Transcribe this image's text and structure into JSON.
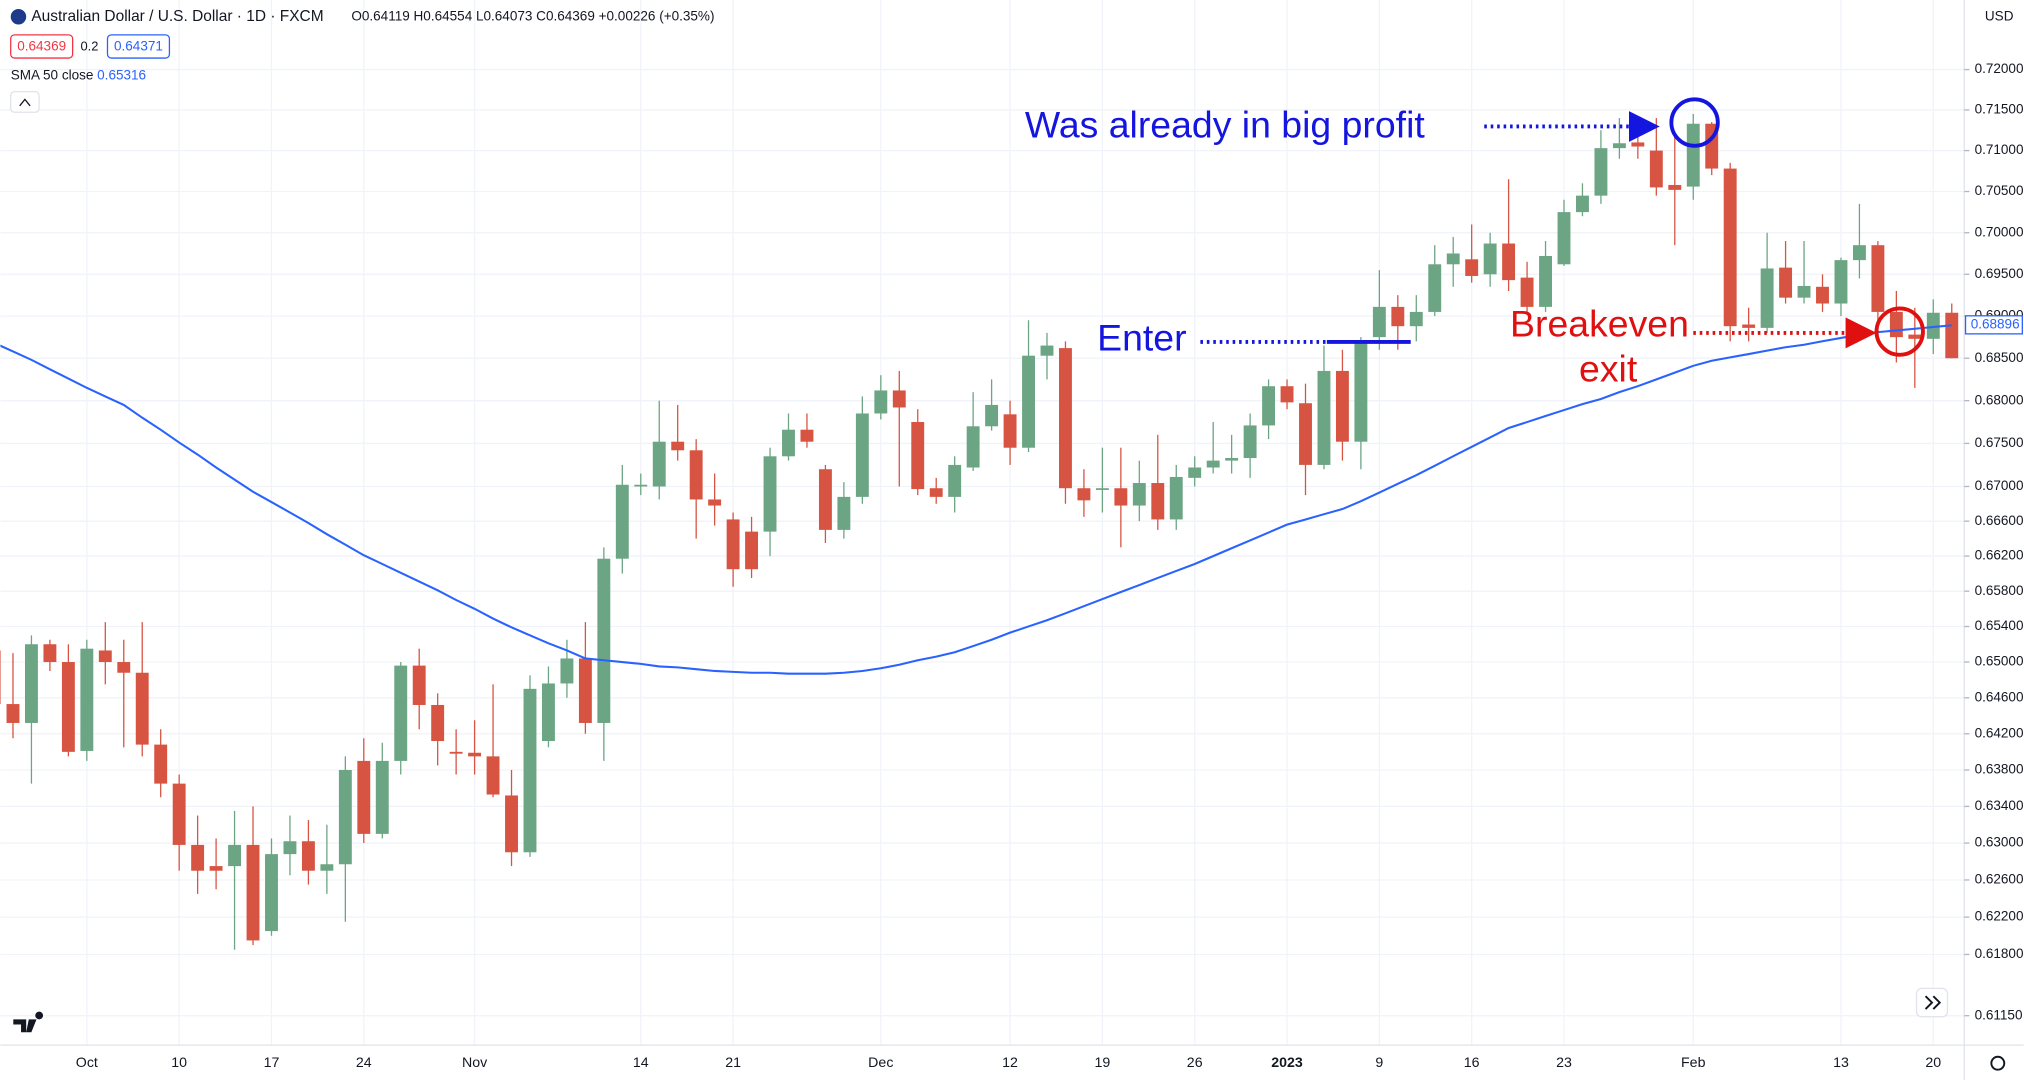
{
  "header": {
    "symbol": "Australian Dollar / U.S. Dollar · 1D · FXCM",
    "ohlc_text": "O0.64119 H0.64554 L0.64073 C0.64369 +0.00226 (+0.35%)",
    "sell": "0.64369",
    "spread": "0.2",
    "buy": "0.64371",
    "currency": "USD"
  },
  "chart_data": {
    "type": "candlestick",
    "categories": [
      null,
      null,
      null,
      null,
      null,
      "Oct",
      null,
      null,
      null,
      null,
      "10",
      null,
      null,
      null,
      null,
      "17",
      null,
      null,
      null,
      null,
      "24",
      null,
      null,
      null,
      null,
      null,
      "Nov",
      null,
      null,
      null,
      null,
      null,
      null,
      null,
      null,
      "14",
      null,
      null,
      null,
      null,
      "21",
      null,
      null,
      null,
      null,
      null,
      null,
      null,
      "Dec",
      null,
      null,
      null,
      null,
      null,
      null,
      "12",
      null,
      null,
      null,
      null,
      "19",
      null,
      null,
      null,
      null,
      "26",
      null,
      null,
      null,
      null,
      "2023",
      null,
      null,
      null,
      null,
      "9",
      null,
      null,
      null,
      null,
      "16",
      null,
      null,
      null,
      null,
      "23",
      null,
      null,
      null,
      null,
      null,
      null,
      "Feb",
      null,
      null,
      null,
      null,
      null,
      null,
      null,
      "13",
      null,
      null,
      null,
      null,
      "20",
      null
    ],
    "ohlc": {
      "up_color": "#6ba583",
      "down_color": "#d75442",
      "open": [
        0.6513,
        0.6453,
        0.6432,
        0.652,
        0.65,
        0.6401,
        0.6513,
        0.65,
        0.6488,
        0.6408,
        0.6365,
        0.6298,
        0.6275,
        0.6275,
        0.6298,
        0.6205,
        0.6288,
        0.6302,
        0.627,
        0.6277,
        0.639,
        0.631,
        0.639,
        0.6496,
        0.6452,
        0.64,
        0.6399,
        0.6395,
        0.6352,
        0.629,
        0.6412,
        0.6476,
        0.6504,
        0.6432,
        0.6617,
        0.67,
        0.67,
        0.6752,
        0.6742,
        0.6685,
        0.6662,
        0.6648,
        0.6648,
        0.6735,
        0.6766,
        0.672,
        0.665,
        0.6688,
        0.6785,
        0.6812,
        0.6775,
        0.6698,
        0.6688,
        0.6722,
        0.677,
        0.6784,
        0.6745,
        0.6853,
        0.6862,
        0.6698,
        0.6696,
        0.6698,
        0.6678,
        0.6704,
        0.6662,
        0.671,
        0.6722,
        0.673,
        0.6733,
        0.6771,
        0.6817,
        0.6797,
        0.6725,
        0.6835,
        0.6752,
        0.6875,
        0.6911,
        0.6888,
        0.6905,
        0.6962,
        0.6968,
        0.695,
        0.6987,
        0.6946,
        0.6911,
        0.6962,
        0.7025,
        0.7045,
        0.7103,
        0.711,
        0.71,
        0.7058,
        0.7056,
        0.7133,
        0.7078,
        0.689,
        0.6886,
        0.6958,
        0.6922,
        0.6935,
        0.6915,
        0.6967,
        0.6985,
        0.6905,
        0.6878,
        0.6873,
        0.6904
      ],
      "high": [
        0.653,
        0.651,
        0.653,
        0.6525,
        0.652,
        0.6525,
        0.6545,
        0.6525,
        0.6545,
        0.6425,
        0.6375,
        0.633,
        0.6305,
        0.6335,
        0.634,
        0.6305,
        0.633,
        0.6325,
        0.632,
        0.6395,
        0.6415,
        0.641,
        0.65,
        0.6515,
        0.6465,
        0.6425,
        0.6435,
        0.6475,
        0.638,
        0.6485,
        0.6495,
        0.6525,
        0.6545,
        0.663,
        0.6725,
        0.6715,
        0.68,
        0.6795,
        0.6755,
        0.6715,
        0.667,
        0.6665,
        0.6745,
        0.6785,
        0.6785,
        0.6725,
        0.6705,
        0.6805,
        0.683,
        0.6835,
        0.679,
        0.671,
        0.6735,
        0.681,
        0.6825,
        0.68,
        0.6895,
        0.688,
        0.687,
        0.672,
        0.6745,
        0.6745,
        0.673,
        0.676,
        0.6725,
        0.6735,
        0.6775,
        0.676,
        0.6785,
        0.6825,
        0.6825,
        0.682,
        0.6865,
        0.686,
        0.6875,
        0.6955,
        0.6925,
        0.6925,
        0.6985,
        0.6995,
        0.701,
        0.7,
        0.7065,
        0.6965,
        0.699,
        0.704,
        0.706,
        0.7125,
        0.714,
        0.713,
        0.714,
        0.712,
        0.7145,
        0.7135,
        0.7085,
        0.691,
        0.7,
        0.699,
        0.699,
        0.695,
        0.697,
        0.7035,
        0.699,
        0.693,
        0.691,
        0.692,
        0.6915
      ],
      "low": [
        0.644,
        0.6415,
        0.6365,
        0.649,
        0.6395,
        0.639,
        0.6475,
        0.6405,
        0.6395,
        0.635,
        0.627,
        0.6245,
        0.625,
        0.6185,
        0.619,
        0.62,
        0.6265,
        0.6255,
        0.6245,
        0.6215,
        0.63,
        0.6305,
        0.6375,
        0.6425,
        0.6385,
        0.6375,
        0.6375,
        0.635,
        0.6275,
        0.6285,
        0.6405,
        0.646,
        0.642,
        0.639,
        0.66,
        0.669,
        0.6685,
        0.673,
        0.664,
        0.6655,
        0.6585,
        0.6595,
        0.662,
        0.673,
        0.6745,
        0.6635,
        0.664,
        0.668,
        0.6778,
        0.67,
        0.669,
        0.668,
        0.667,
        0.6718,
        0.6765,
        0.6725,
        0.674,
        0.6825,
        0.668,
        0.6665,
        0.667,
        0.663,
        0.666,
        0.665,
        0.665,
        0.67,
        0.6715,
        0.6715,
        0.671,
        0.6755,
        0.679,
        0.669,
        0.672,
        0.673,
        0.672,
        0.686,
        0.686,
        0.687,
        0.69,
        0.6935,
        0.694,
        0.6935,
        0.693,
        0.6905,
        0.6905,
        0.696,
        0.702,
        0.7035,
        0.709,
        0.709,
        0.7045,
        0.6985,
        0.704,
        0.707,
        0.687,
        0.687,
        0.688,
        0.6915,
        0.6915,
        0.6905,
        0.69,
        0.6945,
        0.6875,
        0.6845,
        0.6815,
        0.6855,
        0.685
      ],
      "close": [
        0.6453,
        0.6432,
        0.652,
        0.65,
        0.64,
        0.6515,
        0.65,
        0.6488,
        0.6408,
        0.6365,
        0.6298,
        0.627,
        0.627,
        0.6298,
        0.6195,
        0.6288,
        0.6302,
        0.627,
        0.6277,
        0.638,
        0.631,
        0.639,
        0.6496,
        0.6452,
        0.6412,
        0.6398,
        0.6395,
        0.6353,
        0.629,
        0.647,
        0.6476,
        0.6504,
        0.6432,
        0.6617,
        0.6702,
        0.6702,
        0.6752,
        0.6742,
        0.6685,
        0.6678,
        0.6605,
        0.6605,
        0.6735,
        0.6766,
        0.6752,
        0.665,
        0.6688,
        0.6785,
        0.6812,
        0.6792,
        0.6697,
        0.6688,
        0.6725,
        0.677,
        0.6795,
        0.6745,
        0.6853,
        0.6865,
        0.6698,
        0.6684,
        0.6698,
        0.6678,
        0.6704,
        0.6662,
        0.6711,
        0.6722,
        0.673,
        0.6733,
        0.6771,
        0.6817,
        0.6798,
        0.6725,
        0.6835,
        0.6752,
        0.687,
        0.6911,
        0.6888,
        0.6905,
        0.6962,
        0.6975,
        0.6948,
        0.6987,
        0.6943,
        0.6911,
        0.6972,
        0.7025,
        0.7045,
        0.7103,
        0.7109,
        0.7105,
        0.7055,
        0.7052,
        0.7133,
        0.7078,
        0.6888,
        0.6886,
        0.6957,
        0.6922,
        0.6936,
        0.6915,
        0.6967,
        0.6985,
        0.6905,
        0.6875,
        0.6873,
        0.6904,
        0.685
      ]
    },
    "sma": {
      "name": "SMA 50 close",
      "legend_value": "0.65316",
      "color": "#2962ff",
      "values": [
        0.6868,
        0.6858,
        0.6848,
        0.6837,
        0.6826,
        0.6815,
        0.6805,
        0.6795,
        0.678,
        0.6766,
        0.6751,
        0.6737,
        0.6722,
        0.6708,
        0.6694,
        0.6682,
        0.667,
        0.6658,
        0.6645,
        0.6633,
        0.6621,
        0.6611,
        0.6601,
        0.6591,
        0.6581,
        0.657,
        0.656,
        0.6549,
        0.6539,
        0.653,
        0.6521,
        0.6513,
        0.6504,
        0.6502,
        0.65,
        0.6498,
        0.6495,
        0.6494,
        0.6492,
        0.649,
        0.6489,
        0.6488,
        0.6488,
        0.6487,
        0.6487,
        0.6487,
        0.6488,
        0.649,
        0.6493,
        0.6497,
        0.6502,
        0.6506,
        0.6511,
        0.6518,
        0.6525,
        0.6533,
        0.654,
        0.6547,
        0.6555,
        0.6563,
        0.6571,
        0.6579,
        0.6587,
        0.6595,
        0.6603,
        0.6611,
        0.662,
        0.6629,
        0.6638,
        0.6647,
        0.6656,
        0.6662,
        0.6668,
        0.6674,
        0.6683,
        0.6693,
        0.6703,
        0.6713,
        0.6724,
        0.6735,
        0.6746,
        0.6757,
        0.6768,
        0.6775,
        0.6782,
        0.6789,
        0.6796,
        0.6802,
        0.681,
        0.6817,
        0.6825,
        0.6833,
        0.6841,
        0.6847,
        0.6851,
        0.6855,
        0.6859,
        0.6863,
        0.6866,
        0.687,
        0.6874,
        0.6878,
        0.6881,
        0.6883,
        0.6885,
        0.6887,
        0.6889
      ]
    },
    "price_label": 0.68896,
    "ylim": [
      0.6084,
      0.7287
    ],
    "log_scale": true,
    "grid": true,
    "yticks": [
      {
        "value": 0.72,
        "label": "0.72000"
      },
      {
        "value": 0.715,
        "label": "0.71500"
      },
      {
        "value": 0.71,
        "label": "0.71000"
      },
      {
        "value": 0.705,
        "label": "0.70500"
      },
      {
        "value": 0.7,
        "label": "0.70000"
      },
      {
        "value": 0.695,
        "label": "0.69500"
      },
      {
        "value": 0.69,
        "label": "0.69000"
      },
      {
        "value": 0.685,
        "label": "0.68500"
      },
      {
        "value": 0.68,
        "label": "0.68000"
      },
      {
        "value": 0.675,
        "label": "0.67500"
      },
      {
        "value": 0.67,
        "label": "0.67000"
      },
      {
        "value": 0.666,
        "label": "0.66600"
      },
      {
        "value": 0.662,
        "label": "0.66200"
      },
      {
        "value": 0.658,
        "label": "0.65800"
      },
      {
        "value": 0.654,
        "label": "0.65400"
      },
      {
        "value": 0.65,
        "label": "0.65000"
      },
      {
        "value": 0.646,
        "label": "0.64600"
      },
      {
        "value": 0.642,
        "label": "0.64200"
      },
      {
        "value": 0.638,
        "label": "0.63800"
      },
      {
        "value": 0.634,
        "label": "0.63400"
      },
      {
        "value": 0.63,
        "label": "0.63000"
      },
      {
        "value": 0.626,
        "label": "0.62600"
      },
      {
        "value": 0.622,
        "label": "0.62200"
      },
      {
        "value": 0.618,
        "label": "0.61800"
      },
      {
        "value": 0.6115,
        "label": "0.61150"
      }
    ],
    "annotations": {
      "profit": "Was already in big profit",
      "enter": "Enter",
      "exit_1": "Breakeven",
      "exit_2": "exit"
    }
  }
}
